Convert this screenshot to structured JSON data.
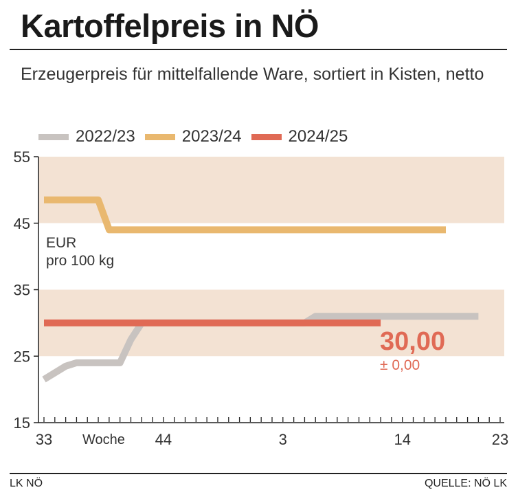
{
  "title": "Kartoffelpreis in NÖ",
  "subtitle": "Erzeugerpreis für mittelfallende Ware, sortiert in Kisten, netto",
  "footer": {
    "left": "LK NÖ",
    "right": "QUELLE: NÖ LK"
  },
  "chart_data": {
    "type": "line",
    "title": "Kartoffelpreis in NÖ",
    "xlabel": "Woche",
    "ylabel": "EUR pro 100 kg",
    "unit_label": [
      "EUR",
      "pro 100 kg"
    ],
    "ylim": [
      15,
      55
    ],
    "yticks": [
      15,
      25,
      35,
      45,
      55
    ],
    "bands": [
      [
        25,
        35
      ],
      [
        45,
        55
      ]
    ],
    "band_color": "#f3e2d3",
    "x_axis": {
      "range_start": 0,
      "range_end": 42,
      "tick_count": 43,
      "tick_labels": [
        {
          "pos": 0,
          "text": "33"
        },
        {
          "pos": 11,
          "text": "44"
        },
        {
          "pos": 22,
          "text": "3"
        },
        {
          "pos": 33,
          "text": "14"
        },
        {
          "pos": 42,
          "text": "23"
        }
      ],
      "label_pos": 5.5
    },
    "series": [
      {
        "name": "2022/23",
        "color": "#c8c3c0",
        "points": [
          [
            0,
            21.5
          ],
          [
            2,
            23.5
          ],
          [
            3,
            24
          ],
          [
            7,
            24
          ],
          [
            8,
            27.5
          ],
          [
            9,
            30
          ],
          [
            24,
            30
          ],
          [
            25,
            31
          ],
          [
            40,
            31
          ]
        ]
      },
      {
        "name": "2023/24",
        "color": "#e9b86f",
        "points": [
          [
            0,
            48.5
          ],
          [
            5,
            48.5
          ],
          [
            6,
            44
          ],
          [
            37,
            44
          ]
        ]
      },
      {
        "name": "2024/25",
        "color": "#e06a55",
        "points": [
          [
            0,
            30
          ],
          [
            31,
            30
          ]
        ]
      }
    ],
    "callout": {
      "value": "30,00",
      "change": "± 0,00",
      "color": "#e06a55"
    }
  }
}
